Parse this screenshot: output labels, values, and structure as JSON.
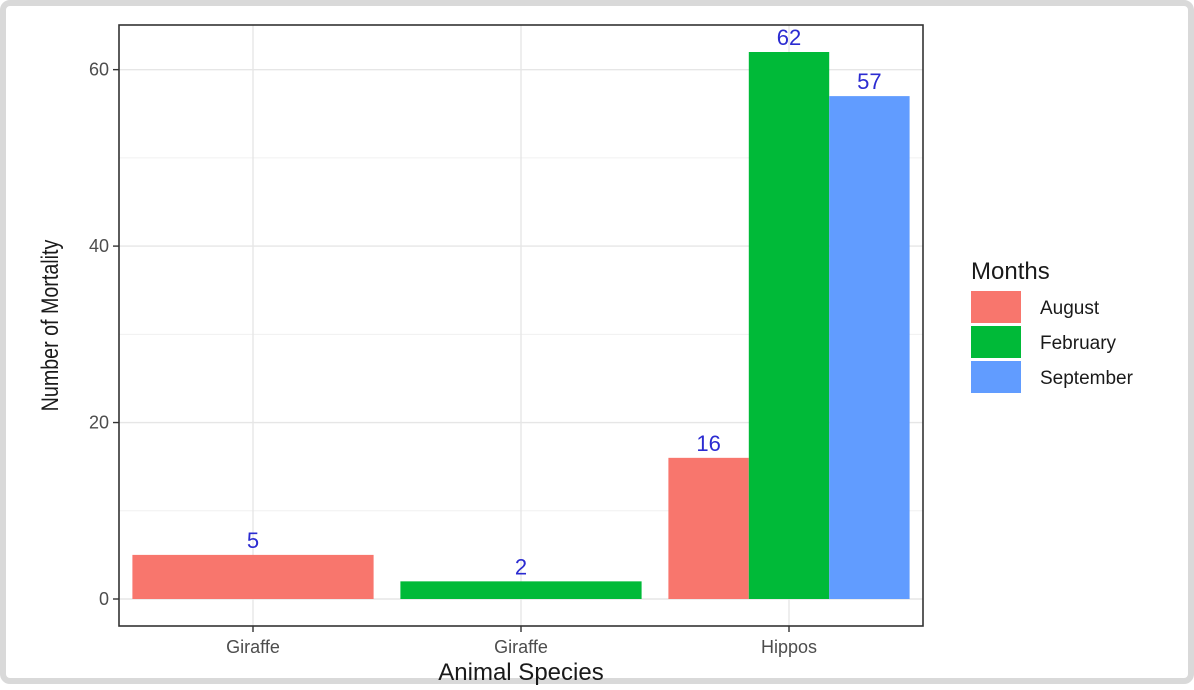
{
  "chart_data": {
    "type": "bar",
    "categories": [
      "Giraffe",
      "Giraffe",
      "Hippos"
    ],
    "xlabel": "Animal Species",
    "ylabel": "Number of Mortality",
    "ylim": [
      0,
      66
    ],
    "yticks": [
      0,
      20,
      40,
      60
    ],
    "grid": true,
    "legend": {
      "title": "Months",
      "placement": "right"
    },
    "series": [
      {
        "name": "August",
        "color": "#F8766D",
        "values": [
          5,
          null,
          16
        ]
      },
      {
        "name": "February",
        "color": "#00BA38",
        "values": [
          null,
          2,
          62
        ]
      },
      {
        "name": "September",
        "color": "#619CFF",
        "values": [
          null,
          null,
          57
        ]
      }
    ],
    "data_labels": true,
    "label_color": "#2b2bd1"
  }
}
